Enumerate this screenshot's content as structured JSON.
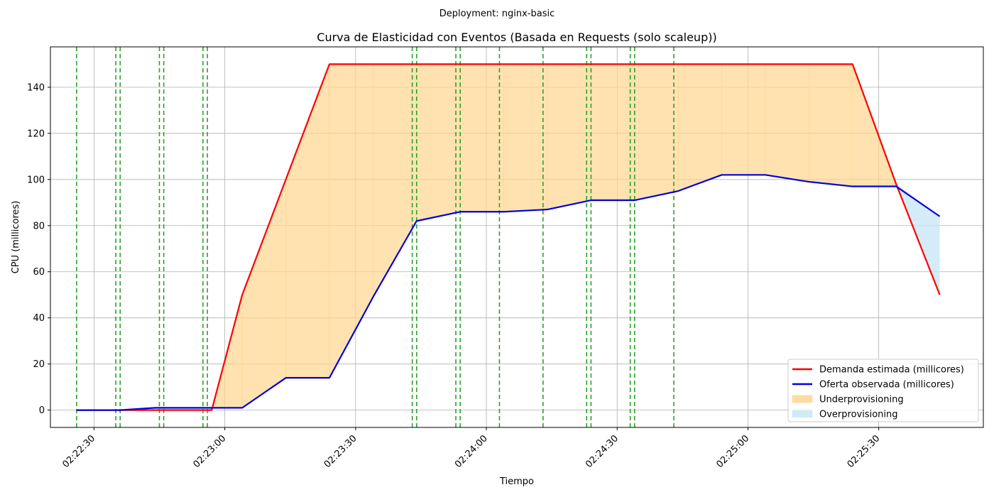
{
  "figure": {
    "suptitle": "Deployment: nginx-basic"
  },
  "chart_data": {
    "type": "line",
    "title": "Curva de Elasticidad con Eventos (Basada en Requests (solo scaleup))",
    "xlabel": "Tiempo",
    "ylabel": "CPU (millicores)",
    "x_ticks": [
      "02:22:30",
      "02:23:00",
      "02:23:30",
      "02:24:00",
      "02:24:30",
      "02:25:00",
      "02:25:30"
    ],
    "y_ticks": [
      0,
      20,
      40,
      60,
      80,
      100,
      120,
      140
    ],
    "xlim": [
      "02:22:20",
      "02:25:54"
    ],
    "ylim": [
      -7.5,
      157.5
    ],
    "grid": true,
    "legend_position": "lower-right",
    "series": [
      {
        "name": "Demanda estimada (millicores)",
        "color": "#ff0000",
        "x": [
          "02:22:26",
          "02:22:36",
          "02:22:46",
          "02:22:56",
          "02:22:57",
          "02:23:04",
          "02:23:14",
          "02:23:24",
          "02:23:34",
          "02:23:44",
          "02:23:54",
          "02:24:04",
          "02:24:14",
          "02:24:24",
          "02:24:34",
          "02:24:44",
          "02:24:54",
          "02:25:04",
          "02:25:14",
          "02:25:24",
          "02:25:34",
          "02:25:44"
        ],
        "y": [
          0,
          0,
          0,
          0,
          0,
          50,
          100,
          150,
          150,
          150,
          150,
          150,
          150,
          150,
          150,
          150,
          150,
          150,
          150,
          150,
          98,
          50
        ]
      },
      {
        "name": "Oferta observada (millicores)",
        "color": "#0000dd",
        "x": [
          "02:22:26",
          "02:22:36",
          "02:22:44",
          "02:22:56",
          "02:23:04",
          "02:23:14",
          "02:23:24",
          "02:23:34",
          "02:23:44",
          "02:23:54",
          "02:24:04",
          "02:24:14",
          "02:24:24",
          "02:24:34",
          "02:24:44",
          "02:24:54",
          "02:25:04",
          "02:25:14",
          "02:25:24",
          "02:25:34",
          "02:25:44"
        ],
        "y": [
          0,
          0,
          1,
          1,
          1,
          14,
          14,
          49,
          82,
          86,
          86,
          87,
          91,
          91,
          95,
          102,
          102,
          99,
          97,
          97,
          84
        ]
      }
    ],
    "areas": [
      {
        "name": "Underprovisioning",
        "color": "#ffd58f"
      },
      {
        "name": "Overprovisioning",
        "color": "#c9e7f5"
      }
    ],
    "event_lines": {
      "color": "#2ca02c",
      "x": [
        "02:22:26",
        "02:22:35",
        "02:22:36",
        "02:22:45",
        "02:22:46",
        "02:22:55",
        "02:22:56",
        "02:23:43",
        "02:23:44",
        "02:23:53",
        "02:23:54",
        "02:24:03",
        "02:24:13",
        "02:24:23",
        "02:24:24",
        "02:24:33",
        "02:24:34",
        "02:24:43"
      ]
    }
  }
}
